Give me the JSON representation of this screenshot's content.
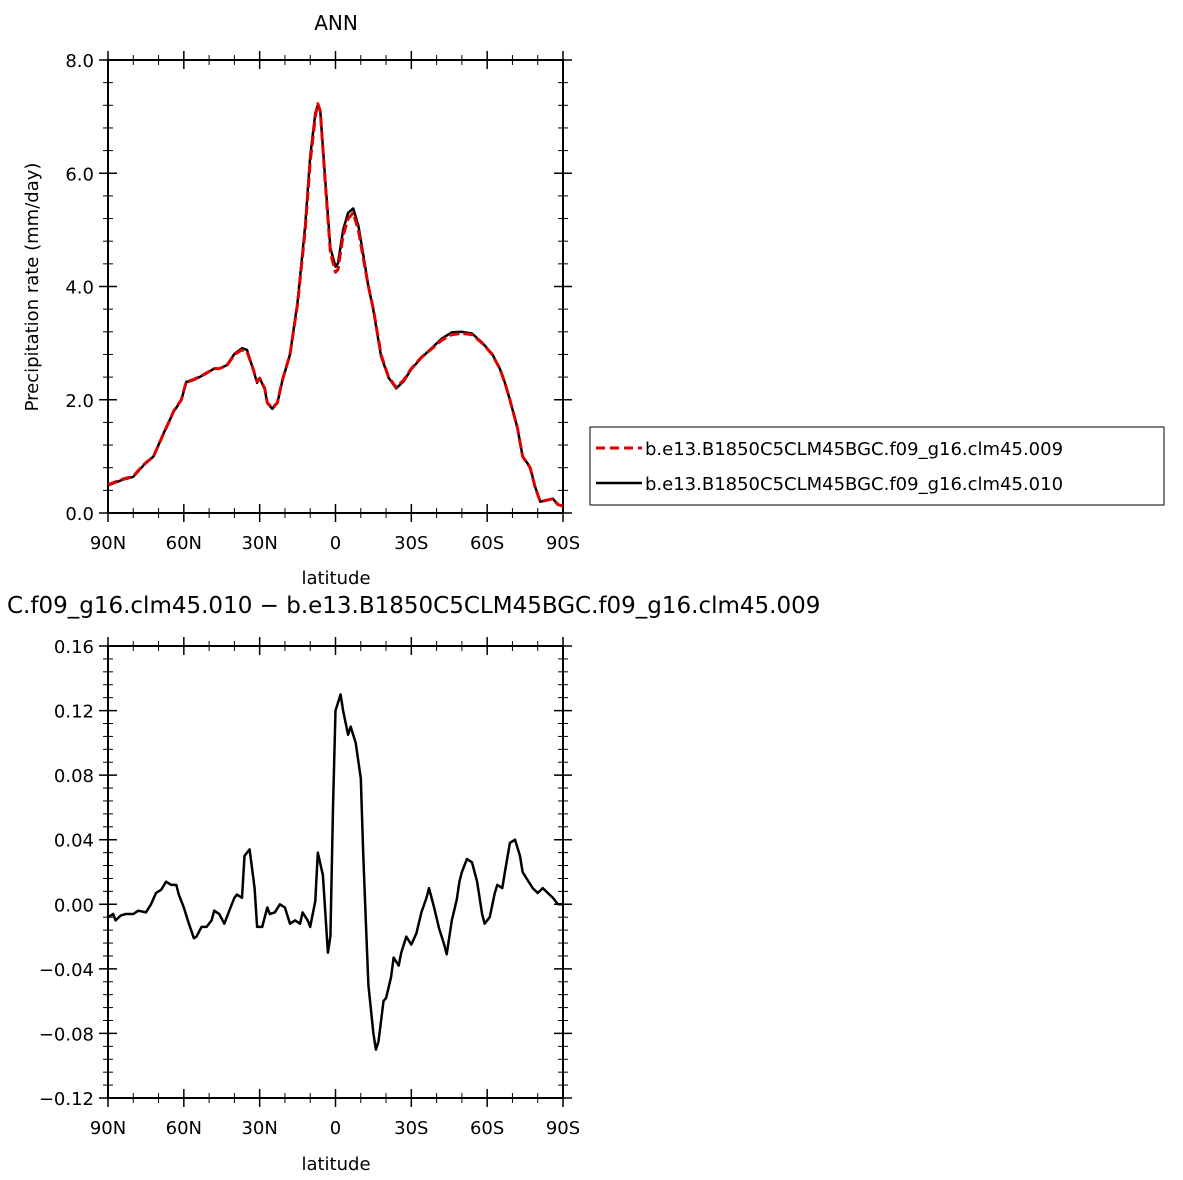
{
  "chart_data": [
    {
      "type": "line",
      "title": "ANN",
      "xlabel": "latitude",
      "ylabel": "Precipitation rate (mm/day)",
      "xlim": [
        90,
        -90
      ],
      "ylim": [
        0,
        8
      ],
      "y_ticks": [
        "0.0",
        "2.0",
        "4.0",
        "6.0",
        "8.0"
      ],
      "x_ticks": [
        "90N",
        "60N",
        "30N",
        "0",
        "30S",
        "60S",
        "90S"
      ],
      "legend": {
        "placement": "right",
        "entries": [
          "b.e13.B1850C5CLM45BGC.f09_g16.clm45.009",
          "b.e13.B1850C5CLM45BGC.f09_g16.clm45.010"
        ]
      },
      "series": [
        {
          "name": "b.e13.B1850C5CLM45BGC.f09_g16.clm45.009",
          "color": "#e00000",
          "dash": true,
          "x": [
            90,
            84,
            80,
            76,
            72,
            68,
            64,
            61,
            59,
            58,
            56,
            52,
            48,
            46,
            43,
            40,
            37,
            35,
            33,
            31,
            30,
            28,
            27,
            25,
            23,
            21,
            18,
            15,
            12,
            10,
            8,
            7,
            6,
            4,
            2,
            0,
            -1,
            -3,
            -5,
            -7,
            -9,
            -11,
            -13,
            -15,
            -18,
            -21,
            -24,
            -27,
            -30,
            -34,
            -38,
            -42,
            -46,
            -50,
            -54,
            -58,
            -62,
            -65,
            -67,
            -69,
            -72,
            -74,
            -77,
            -79,
            -81,
            -83,
            -86,
            -88,
            -90
          ],
          "y": [
            0.5,
            0.6,
            0.65,
            0.85,
            1.0,
            1.4,
            1.8,
            2.0,
            2.33,
            2.33,
            2.36,
            2.45,
            2.55,
            2.55,
            2.6,
            2.8,
            2.88,
            2.85,
            2.6,
            2.32,
            2.38,
            2.2,
            1.95,
            1.85,
            1.95,
            2.35,
            2.8,
            3.7,
            5.0,
            6.2,
            7.0,
            7.23,
            7.1,
            5.8,
            4.6,
            4.25,
            4.3,
            4.9,
            5.2,
            5.3,
            5.0,
            4.5,
            4.0,
            3.6,
            2.8,
            2.4,
            2.22,
            2.35,
            2.55,
            2.75,
            2.9,
            3.05,
            3.15,
            3.17,
            3.15,
            3.0,
            2.8,
            2.55,
            2.3,
            2.0,
            1.5,
            1.0,
            0.8,
            0.45,
            0.2,
            0.22,
            0.25,
            0.15,
            0.12
          ]
        },
        {
          "name": "b.e13.B1850C5CLM45BGC.f09_g16.clm45.010",
          "color": "#000000",
          "dash": false,
          "x": [
            90,
            84,
            80,
            76,
            72,
            68,
            64,
            61,
            59,
            58,
            56,
            52,
            48,
            46,
            43,
            40,
            37,
            35,
            33,
            31,
            30,
            28,
            27,
            25,
            23,
            21,
            18,
            15,
            12,
            10,
            8,
            7,
            6,
            4,
            2,
            0,
            -1,
            -3,
            -5,
            -7,
            -9,
            -11,
            -13,
            -15,
            -18,
            -21,
            -24,
            -27,
            -30,
            -34,
            -38,
            -42,
            -46,
            -50,
            -54,
            -58,
            -62,
            -65,
            -67,
            -69,
            -72,
            -74,
            -77,
            -79,
            -81,
            -83,
            -86,
            -88,
            -90
          ],
          "y": [
            0.49,
            0.59,
            0.64,
            0.84,
            1.0,
            1.41,
            1.79,
            1.99,
            2.32,
            2.32,
            2.35,
            2.44,
            2.55,
            2.55,
            2.61,
            2.81,
            2.91,
            2.88,
            2.59,
            2.3,
            2.38,
            2.19,
            1.94,
            1.84,
            1.94,
            2.34,
            2.8,
            3.73,
            5.08,
            6.3,
            7.06,
            7.2,
            7.09,
            5.85,
            4.68,
            4.35,
            4.41,
            5.0,
            5.3,
            5.38,
            5.08,
            4.56,
            4.0,
            3.58,
            2.77,
            2.39,
            2.2,
            2.33,
            2.54,
            2.74,
            2.91,
            3.08,
            3.19,
            3.2,
            3.17,
            3.01,
            2.81,
            2.55,
            2.3,
            2.0,
            1.5,
            1.0,
            0.81,
            0.46,
            0.2,
            0.22,
            0.25,
            0.15,
            0.12
          ]
        }
      ]
    },
    {
      "type": "line",
      "title": "C.f09_g16.clm45.010 − b.e13.B1850C5CLM45BGC.f09_g16.clm45.009",
      "xlabel": "latitude",
      "ylabel": "",
      "xlim": [
        90,
        -90
      ],
      "ylim": [
        -0.12,
        0.16
      ],
      "y_ticks": [
        "−0.12",
        "−0.08",
        "−0.04",
        "0.00",
        "0.04",
        "0.08",
        "0.12",
        "0.16"
      ],
      "x_ticks": [
        "90N",
        "60N",
        "30N",
        "0",
        "30S",
        "60S",
        "90S"
      ],
      "series": [
        {
          "color": "#000000",
          "x": [
            90,
            88,
            87,
            85,
            83,
            80,
            78,
            75,
            73,
            71,
            69,
            67,
            65,
            63,
            62,
            60,
            58,
            56,
            55,
            53,
            51,
            49,
            48,
            46,
            44,
            42,
            40,
            39,
            37,
            36,
            34,
            32,
            31,
            29,
            27,
            26,
            24,
            22,
            20,
            18,
            16,
            14,
            13,
            11,
            10,
            8,
            7,
            5,
            3,
            2,
            1,
            0,
            -2,
            -3,
            -5,
            -6,
            -8,
            -10,
            -11,
            -12,
            -13,
            -15,
            -16,
            -17,
            -19,
            -20,
            -22,
            -23,
            -25,
            -26,
            -28,
            -30,
            -32,
            -34,
            -36,
            -37,
            -39,
            -41,
            -43,
            -44,
            -46,
            -48,
            -49,
            -50,
            -52,
            -54,
            -56,
            -58,
            -59,
            -61,
            -63,
            -64,
            -66,
            -67,
            -69,
            -71,
            -73,
            -74,
            -76,
            -78,
            -80,
            -82,
            -84,
            -86,
            -88,
            -90
          ],
          "y": [
            -0.008,
            -0.006,
            -0.01,
            -0.007,
            -0.006,
            -0.006,
            -0.004,
            -0.005,
            0.0,
            0.007,
            0.009,
            0.014,
            0.012,
            0.012,
            0.006,
            -0.002,
            -0.012,
            -0.021,
            -0.02,
            -0.014,
            -0.014,
            -0.01,
            -0.004,
            -0.006,
            -0.012,
            -0.004,
            0.004,
            0.006,
            0.004,
            0.03,
            0.034,
            0.01,
            -0.014,
            -0.014,
            -0.002,
            -0.006,
            -0.005,
            0.0,
            -0.002,
            -0.012,
            -0.01,
            -0.012,
            -0.005,
            -0.01,
            -0.014,
            0.002,
            0.032,
            0.018,
            -0.03,
            -0.02,
            0.06,
            0.12,
            0.13,
            0.12,
            0.105,
            0.11,
            0.1,
            0.078,
            0.03,
            -0.01,
            -0.05,
            -0.08,
            -0.09,
            -0.085,
            -0.06,
            -0.058,
            -0.045,
            -0.033,
            -0.038,
            -0.03,
            -0.02,
            -0.025,
            -0.018,
            -0.005,
            0.004,
            0.01,
            -0.002,
            -0.015,
            -0.025,
            -0.031,
            -0.01,
            0.003,
            0.014,
            0.02,
            0.028,
            0.026,
            0.014,
            -0.006,
            -0.012,
            -0.008,
            0.007,
            0.012,
            0.01,
            0.02,
            0.038,
            0.04,
            0.03,
            0.02,
            0.015,
            0.01,
            0.007,
            0.01,
            0.007,
            0.004,
            0.0,
            0.0
          ]
        }
      ]
    }
  ]
}
